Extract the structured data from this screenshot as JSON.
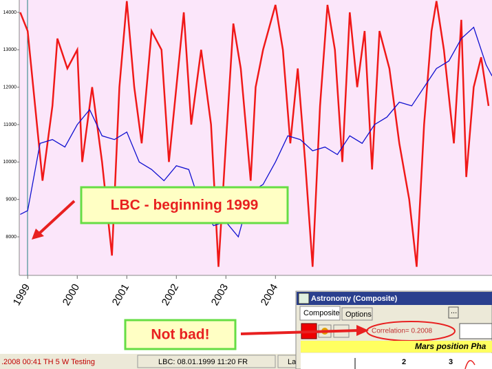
{
  "chart_data": {
    "type": "line",
    "xlim": [
      1998.83,
      2008.37
    ],
    "xticks": [
      1999,
      2000,
      2001,
      2002,
      2003,
      2004
    ],
    "ylim": [
      6970,
      14330
    ],
    "yticks": [
      8000,
      9000,
      10000,
      11000,
      12000,
      13000,
      14000
    ],
    "background": "#fbe6fa",
    "series": [
      {
        "name": "LBC",
        "color": "#1010d0",
        "x": [
          1998.85,
          1999.0,
          1999.25,
          1999.5,
          1999.75,
          2000.0,
          2000.25,
          2000.5,
          2000.75,
          2001.0,
          2001.25,
          2001.5,
          2001.75,
          2002.0,
          2002.25,
          2002.5,
          2002.75,
          2003.0,
          2003.25,
          2003.5,
          2003.75,
          2004.0,
          2004.25,
          2004.5,
          2004.75,
          2005.0,
          2005.25,
          2005.5,
          2005.75,
          2006.0,
          2006.25,
          2006.5,
          2006.75,
          2007.0,
          2007.25,
          2007.5,
          2007.75,
          2008.0,
          2008.25,
          2008.37
        ],
        "values": [
          8600,
          8700,
          10500,
          10600,
          10400,
          11000,
          11400,
          10700,
          10600,
          10800,
          10000,
          9800,
          9500,
          9900,
          9800,
          8800,
          8300,
          8400,
          8000,
          9200,
          9400,
          10000,
          10700,
          10600,
          10300,
          10400,
          10200,
          10700,
          10500,
          11000,
          11200,
          11600,
          11500,
          12000,
          12500,
          12700,
          13300,
          13600,
          12600,
          12300
        ]
      },
      {
        "name": "Mars position",
        "color": "#f01818",
        "x": [
          1998.85,
          1999.0,
          1999.15,
          1999.3,
          1999.5,
          1999.6,
          1999.8,
          2000.0,
          2000.1,
          2000.3,
          2000.5,
          2000.7,
          2000.85,
          2001.0,
          2001.15,
          2001.3,
          2001.5,
          2001.7,
          2001.85,
          2002.0,
          2002.15,
          2002.3,
          2002.5,
          2002.7,
          2002.85,
          2003.0,
          2003.15,
          2003.3,
          2003.5,
          2003.6,
          2003.75,
          2004.0,
          2004.15,
          2004.3,
          2004.45,
          2004.6,
          2004.75,
          2004.9,
          2005.05,
          2005.2,
          2005.35,
          2005.5,
          2005.65,
          2005.8,
          2005.95,
          2006.1,
          2006.3,
          2006.5,
          2006.7,
          2006.85,
          2007.0,
          2007.15,
          2007.25,
          2007.4,
          2007.6,
          2007.75,
          2007.85,
          2008.0,
          2008.15,
          2008.3
        ],
        "values": [
          14000,
          13500,
          11500,
          9500,
          11500,
          13300,
          12500,
          13000,
          10000,
          12000,
          10000,
          7500,
          12000,
          14300,
          12000,
          10500,
          13500,
          13000,
          10000,
          12000,
          14000,
          11000,
          13000,
          11000,
          7200,
          10500,
          13700,
          12500,
          9500,
          12000,
          13000,
          14200,
          13000,
          10500,
          12500,
          10000,
          7200,
          11500,
          14200,
          13000,
          10000,
          14000,
          12000,
          13500,
          9800,
          13500,
          12500,
          10500,
          9000,
          7200,
          11000,
          13500,
          14300,
          13000,
          10500,
          13800,
          9600,
          12000,
          12800,
          11500
        ]
      }
    ]
  },
  "annotations": {
    "top": "LBC - beginning 1999",
    "bottom": "Not bad!"
  },
  "status_bar": {
    "left": ".2008 00:41 TH   5 W   Testing",
    "middle": "LBC: 08.01.1999 11:20 FR",
    "right": "La"
  },
  "panel": {
    "title": "Astronomy (Composite)",
    "tabs": [
      "Composite",
      "Options"
    ],
    "more": "...",
    "correlation": "Correlation= 0.2008",
    "row_header": "Mars position  Pha",
    "numbers": [
      "2",
      "3"
    ]
  }
}
